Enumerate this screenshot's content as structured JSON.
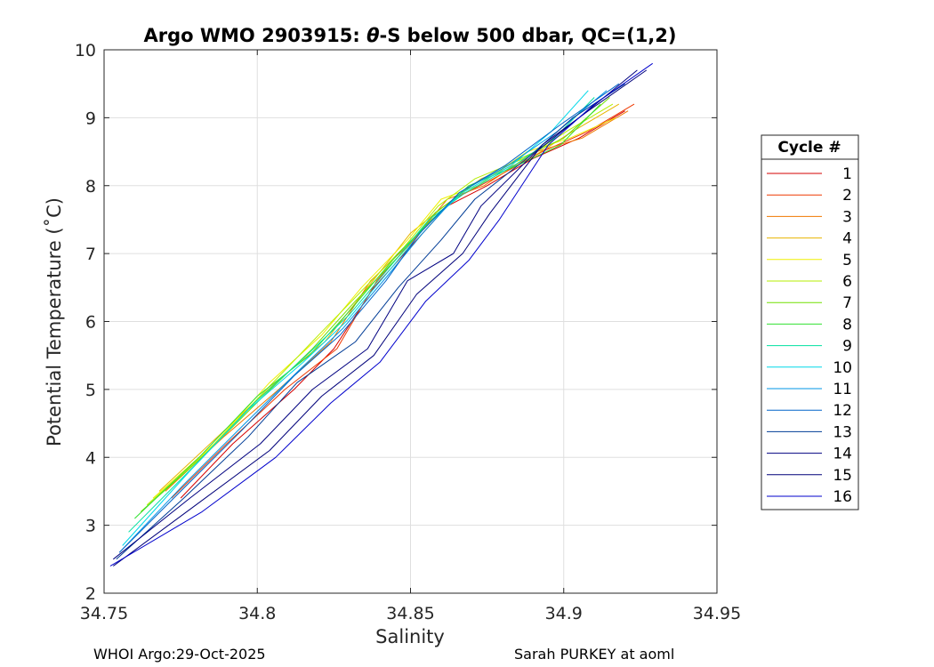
{
  "title_prefix": "Argo WMO 2903915: ",
  "title_theta": "θ",
  "title_suffix": "-S below 500 dbar,  QC=(1,2)",
  "xlabel": "Salinity",
  "ylabel": "Potential Temperature (˚C)",
  "footer_left": "WHOI Argo:29-Oct-2025",
  "footer_right": "Sarah PURKEY at aoml",
  "legend": {
    "title": "Cycle #",
    "placement": "right, outside plot"
  },
  "chart_data": {
    "type": "line",
    "xlim": [
      34.75,
      34.95
    ],
    "ylim": [
      2,
      10
    ],
    "x_ticks": [
      "34.75",
      "34.8",
      "34.85",
      "34.9",
      "34.95"
    ],
    "y_ticks": [
      "2",
      "3",
      "4",
      "5",
      "6",
      "7",
      "8",
      "9",
      "10"
    ],
    "grid": true,
    "series": [
      {
        "name": "1",
        "color": "#d40000",
        "x": [
          34.775,
          34.792,
          34.812,
          34.825,
          34.838,
          34.852,
          34.862,
          34.875,
          34.89,
          34.905,
          34.92
        ],
        "y": [
          3.4,
          4.2,
          5.0,
          5.6,
          6.5,
          7.2,
          7.7,
          8.0,
          8.4,
          8.7,
          9.1
        ]
      },
      {
        "name": "2",
        "color": "#ee3800",
        "x": [
          34.772,
          34.79,
          34.809,
          34.826,
          34.839,
          34.853,
          34.864,
          34.877,
          34.893,
          34.908,
          34.923
        ],
        "y": [
          3.4,
          4.2,
          5.0,
          5.6,
          6.6,
          7.3,
          7.8,
          8.1,
          8.5,
          8.8,
          9.2
        ]
      },
      {
        "name": "3",
        "color": "#f07800",
        "x": [
          34.77,
          34.789,
          34.807,
          34.824,
          34.837,
          34.851,
          34.862,
          34.874,
          34.891,
          34.906,
          34.921
        ],
        "y": [
          3.5,
          4.3,
          5.0,
          5.7,
          6.6,
          7.2,
          7.8,
          8.0,
          8.5,
          8.7,
          9.1
        ]
      },
      {
        "name": "4",
        "color": "#e8b400",
        "x": [
          34.768,
          34.787,
          34.806,
          34.822,
          34.836,
          34.85,
          34.861,
          34.873,
          34.889,
          34.903,
          34.918
        ],
        "y": [
          3.5,
          4.3,
          5.1,
          5.7,
          6.5,
          7.3,
          7.7,
          8.1,
          8.4,
          8.8,
          9.2
        ]
      },
      {
        "name": "5",
        "color": "#f0f000",
        "x": [
          34.766,
          34.786,
          34.804,
          34.821,
          34.834,
          34.849,
          34.86,
          34.872,
          34.888,
          34.902,
          34.917
        ],
        "y": [
          3.4,
          4.2,
          5.1,
          5.8,
          6.5,
          7.2,
          7.8,
          8.0,
          8.5,
          8.7,
          9.0
        ]
      },
      {
        "name": "6",
        "color": "#b4ee00",
        "x": [
          34.764,
          34.784,
          34.803,
          34.82,
          34.833,
          34.848,
          34.859,
          34.871,
          34.887,
          34.901,
          34.916
        ],
        "y": [
          3.3,
          4.1,
          5.0,
          5.8,
          6.4,
          7.1,
          7.7,
          8.1,
          8.4,
          8.8,
          9.2
        ]
      },
      {
        "name": "7",
        "color": "#70e000",
        "x": [
          34.762,
          34.782,
          34.802,
          34.818,
          34.832,
          34.847,
          34.858,
          34.87,
          34.886,
          34.9,
          34.915
        ],
        "y": [
          3.2,
          4.0,
          4.9,
          5.6,
          6.3,
          7.0,
          7.6,
          8.0,
          8.4,
          8.7,
          9.3
        ]
      },
      {
        "name": "8",
        "color": "#30e030",
        "x": [
          34.76,
          34.781,
          34.8,
          34.817,
          34.831,
          34.846,
          34.857,
          34.869,
          34.885,
          34.899,
          34.912
        ],
        "y": [
          3.1,
          4.0,
          4.9,
          5.5,
          6.2,
          7.0,
          7.5,
          8.0,
          8.3,
          8.6,
          9.2
        ]
      },
      {
        "name": "9",
        "color": "#00e0a0",
        "x": [
          34.758,
          34.78,
          34.799,
          34.816,
          34.83,
          34.845,
          34.856,
          34.868,
          34.884,
          34.897,
          34.91
        ],
        "y": [
          2.9,
          3.9,
          4.8,
          5.5,
          6.1,
          6.9,
          7.5,
          7.9,
          8.3,
          8.7,
          9.3
        ]
      },
      {
        "name": "10",
        "color": "#00d8e8",
        "x": [
          34.756,
          34.778,
          34.797,
          34.815,
          34.829,
          34.844,
          34.855,
          34.867,
          34.883,
          34.896,
          34.908
        ],
        "y": [
          2.7,
          3.8,
          4.7,
          5.4,
          6.0,
          6.8,
          7.4,
          7.9,
          8.3,
          8.8,
          9.4
        ]
      },
      {
        "name": "11",
        "color": "#0096e6",
        "x": [
          34.755,
          34.776,
          34.796,
          34.814,
          34.828,
          34.843,
          34.854,
          34.866,
          34.882,
          34.898,
          34.914
        ],
        "y": [
          2.6,
          3.6,
          4.5,
          5.3,
          5.9,
          6.7,
          7.3,
          7.9,
          8.3,
          8.8,
          9.4
        ]
      },
      {
        "name": "12",
        "color": "#0064c8",
        "x": [
          34.755,
          34.775,
          34.795,
          34.812,
          34.827,
          34.842,
          34.853,
          34.866,
          34.881,
          34.899,
          34.918
        ],
        "y": [
          2.6,
          3.5,
          4.4,
          5.2,
          5.8,
          6.6,
          7.3,
          7.9,
          8.3,
          8.9,
          9.5
        ]
      },
      {
        "name": "13",
        "color": "#003c96",
        "x": [
          34.754,
          34.776,
          34.797,
          34.813,
          34.832,
          34.846,
          34.86,
          34.871,
          34.888,
          34.903,
          34.92
        ],
        "y": [
          2.5,
          3.4,
          4.3,
          5.1,
          5.7,
          6.5,
          7.2,
          7.8,
          8.4,
          9.0,
          9.5
        ]
      },
      {
        "name": "14",
        "color": "#000080",
        "x": [
          34.753,
          34.778,
          34.801,
          34.818,
          34.836,
          34.849,
          34.864,
          34.873,
          34.891,
          34.905,
          34.924
        ],
        "y": [
          2.5,
          3.4,
          4.2,
          5.0,
          5.6,
          6.6,
          7.0,
          7.7,
          8.5,
          9.0,
          9.7
        ]
      },
      {
        "name": "15",
        "color": "#00007a",
        "x": [
          34.753,
          34.78,
          34.804,
          34.821,
          34.838,
          34.852,
          34.867,
          34.876,
          34.893,
          34.908,
          34.927
        ],
        "y": [
          2.4,
          3.3,
          4.1,
          4.9,
          5.5,
          6.4,
          7.0,
          7.6,
          8.6,
          9.1,
          9.7
        ]
      },
      {
        "name": "16",
        "color": "#0000cc",
        "x": [
          34.752,
          34.782,
          34.806,
          34.824,
          34.84,
          34.855,
          34.869,
          34.879,
          34.895,
          34.91,
          34.929
        ],
        "y": [
          2.4,
          3.2,
          4.0,
          4.8,
          5.4,
          6.3,
          6.9,
          7.5,
          8.6,
          9.2,
          9.8
        ]
      }
    ]
  }
}
